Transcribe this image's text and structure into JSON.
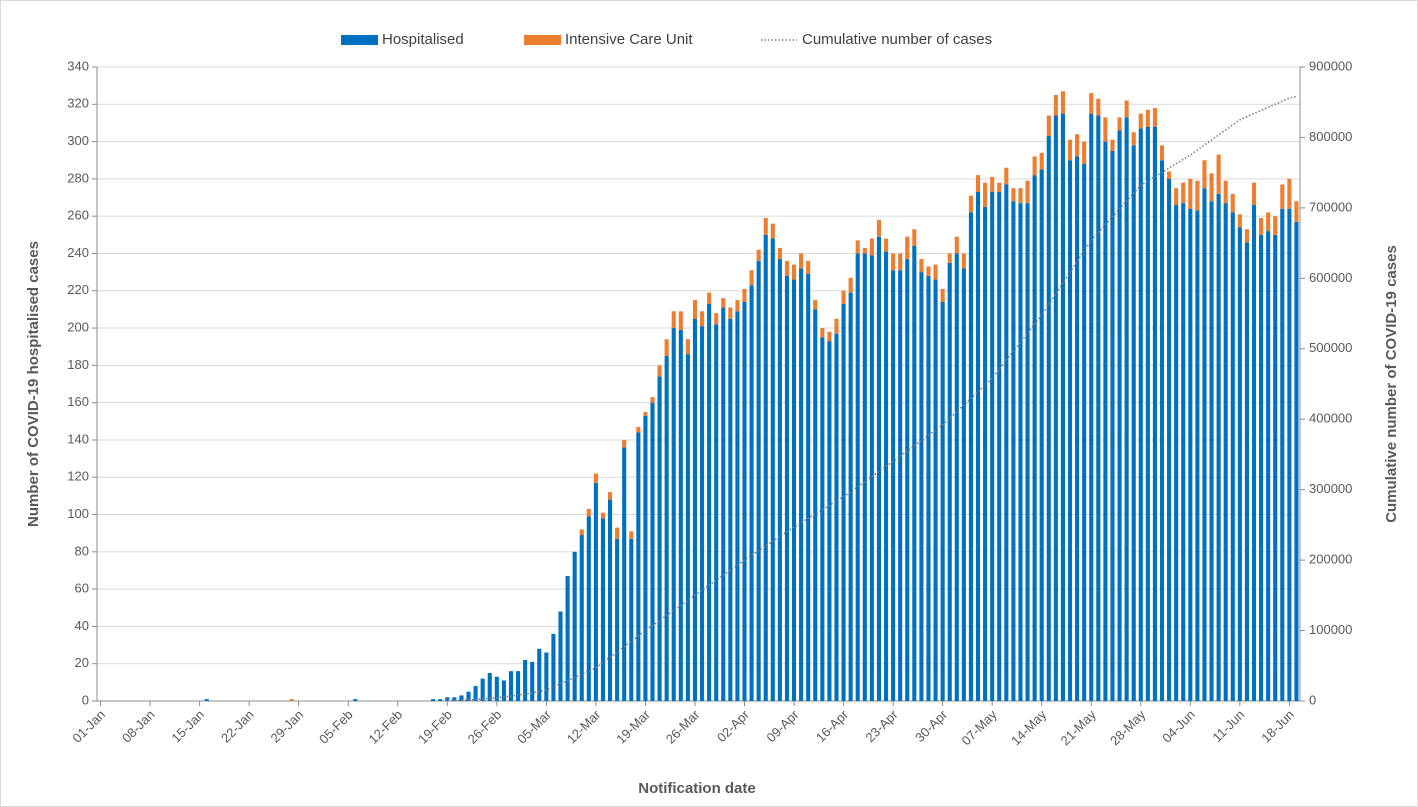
{
  "chart_data": {
    "type": "bar",
    "stacked": true,
    "grid": true,
    "x_label": "Notification date",
    "y_label": "Number of COVID-19 hospitalised cases",
    "y2_label": "Cumulative number of COVID-19 cases",
    "categories": [
      "01-Jan",
      null,
      null,
      null,
      null,
      null,
      null,
      "08-Jan",
      null,
      null,
      null,
      null,
      null,
      null,
      "15-Jan",
      null,
      null,
      null,
      null,
      null,
      null,
      "22-Jan",
      null,
      null,
      null,
      null,
      null,
      null,
      "29-Jan",
      null,
      null,
      null,
      null,
      null,
      null,
      "05-Feb",
      null,
      null,
      null,
      null,
      null,
      null,
      "12-Feb",
      null,
      null,
      null,
      null,
      null,
      null,
      "19-Feb",
      null,
      null,
      null,
      null,
      null,
      null,
      "26-Feb",
      null,
      null,
      null,
      null,
      null,
      null,
      "05-Mar",
      null,
      null,
      null,
      null,
      null,
      null,
      "12-Mar",
      null,
      null,
      null,
      null,
      null,
      null,
      "19-Mar",
      null,
      null,
      null,
      null,
      null,
      null,
      "26-Mar",
      null,
      null,
      null,
      null,
      null,
      null,
      "02-Apr",
      null,
      null,
      null,
      null,
      null,
      null,
      "09-Apr",
      null,
      null,
      null,
      null,
      null,
      null,
      "16-Apr",
      null,
      null,
      null,
      null,
      null,
      null,
      "23-Apr",
      null,
      null,
      null,
      null,
      null,
      null,
      "30-Apr",
      null,
      null,
      null,
      null,
      null,
      null,
      "07-May",
      null,
      null,
      null,
      null,
      null,
      null,
      "14-May",
      null,
      null,
      null,
      null,
      null,
      null,
      "21-May",
      null,
      null,
      null,
      null,
      null,
      null,
      "28-May",
      null,
      null,
      null,
      null,
      null,
      null,
      "04-Jun",
      null,
      null,
      null,
      null,
      null,
      null,
      "11-Jun",
      null,
      null,
      null,
      null,
      null,
      null,
      "18-Jun",
      null
    ],
    "series": [
      {
        "name": "Hospitalised",
        "color": "#0070c0",
        "values": [
          0,
          0,
          0,
          0,
          0,
          0,
          0,
          0,
          0,
          0,
          0,
          0,
          0,
          0,
          0,
          1,
          0,
          0,
          0,
          0,
          0,
          0,
          0,
          0,
          0,
          0,
          0,
          0,
          0,
          0,
          0,
          0,
          0,
          0,
          0,
          0,
          1,
          0,
          0,
          0,
          0,
          0,
          0,
          0,
          0,
          0,
          0,
          1,
          1,
          2,
          2,
          3,
          5,
          8,
          12,
          15,
          13,
          11,
          16,
          16,
          22,
          21,
          28,
          26,
          36,
          48,
          67,
          80,
          89,
          99,
          117,
          98,
          108,
          87,
          136,
          87,
          144,
          153,
          160,
          174,
          185,
          200,
          199,
          186,
          205,
          201,
          213,
          202,
          211,
          205,
          209,
          214,
          223,
          236,
          250,
          248,
          237,
          228,
          226,
          232,
          229,
          210,
          195,
          193,
          197,
          213,
          219,
          240,
          240,
          239,
          249,
          241,
          231,
          231,
          237,
          244,
          230,
          228,
          226,
          214,
          235,
          240,
          232,
          262,
          273,
          265,
          273,
          273,
          277,
          268,
          267,
          267,
          282,
          285,
          303,
          314,
          315,
          290,
          292,
          288,
          315,
          314,
          300,
          295,
          306,
          313,
          298,
          307,
          308,
          308,
          290,
          280,
          266,
          267,
          264,
          263,
          275,
          268,
          272,
          267,
          262,
          254,
          246,
          266,
          250,
          252,
          250,
          264,
          264,
          257
        ]
      },
      {
        "name": "Intensive Care Unit",
        "color": "#ed7d31",
        "values": [
          0,
          0,
          0,
          0,
          0,
          0,
          0,
          0,
          0,
          0,
          0,
          0,
          0,
          0,
          0,
          0,
          0,
          0,
          0,
          0,
          0,
          0,
          0,
          0,
          0,
          0,
          0,
          1,
          0,
          0,
          0,
          0,
          0,
          0,
          0,
          0,
          0,
          0,
          0,
          0,
          0,
          0,
          0,
          0,
          0,
          0,
          0,
          0,
          0,
          0,
          0,
          0,
          0,
          0,
          0,
          0,
          0,
          0,
          0,
          0,
          0,
          0,
          0,
          0,
          0,
          0,
          0,
          0,
          3,
          4,
          5,
          3,
          4,
          6,
          4,
          4,
          3,
          2,
          3,
          6,
          9,
          9,
          10,
          8,
          10,
          8,
          6,
          6,
          5,
          6,
          6,
          7,
          8,
          6,
          9,
          8,
          6,
          8,
          8,
          8,
          7,
          5,
          5,
          5,
          8,
          7,
          8,
          7,
          3,
          9,
          9,
          7,
          9,
          9,
          12,
          9,
          7,
          5,
          8,
          7,
          5,
          9,
          8,
          9,
          9,
          13,
          8,
          5,
          9,
          7,
          8,
          12,
          10,
          9,
          11,
          11,
          12,
          11,
          12,
          12,
          11,
          9,
          13,
          6,
          7,
          9,
          7,
          8,
          9,
          10,
          8,
          4,
          9,
          11,
          16,
          16,
          15,
          15,
          21,
          12,
          10,
          7,
          7,
          12,
          9,
          10,
          10,
          13,
          16,
          11
        ]
      },
      {
        "name": "Cumulative number of cases",
        "type": "line",
        "axis": "y2",
        "color": "#7f7f7f",
        "values": [
          null,
          null,
          null,
          null,
          null,
          null,
          null,
          null,
          null,
          null,
          null,
          null,
          null,
          null,
          null,
          null,
          null,
          null,
          null,
          null,
          null,
          null,
          null,
          null,
          null,
          null,
          null,
          null,
          null,
          null,
          null,
          null,
          null,
          null,
          null,
          null,
          null,
          null,
          null,
          null,
          null,
          null,
          null,
          null,
          null,
          null,
          null,
          null,
          null,
          500,
          700,
          1000,
          1500,
          2000,
          2800,
          3600,
          4500,
          5800,
          7000,
          8500,
          10000,
          11500,
          13500,
          15600,
          20100,
          24600,
          29100,
          33500,
          38000,
          42500,
          47000,
          54600,
          62100,
          69700,
          77300,
          84900,
          92400,
          100000,
          107100,
          114300,
          121400,
          128600,
          135700,
          142900,
          150000,
          157100,
          164300,
          171400,
          178600,
          185700,
          192900,
          200000,
          206700,
          213400,
          220100,
          226900,
          233600,
          240300,
          247000,
          253100,
          259300,
          265400,
          271600,
          277700,
          283900,
          290000,
          297100,
          304300,
          311400,
          318600,
          325700,
          332900,
          340000,
          347400,
          354900,
          362300,
          369700,
          377100,
          384600,
          392000,
          401400,
          410900,
          420300,
          429700,
          439100,
          448600,
          458000,
          470900,
          483700,
          496600,
          509400,
          522300,
          535100,
          548000,
          563100,
          578300,
          593400,
          608600,
          623700,
          638900,
          654000,
          665100,
          676300,
          687400,
          698600,
          709700,
          720900,
          732000,
          738100,
          744300,
          750400,
          756600,
          762700,
          768900,
          775000,
          782100,
          789300,
          796400,
          803600,
          810700,
          817900,
          825000,
          829400,
          833900,
          838300,
          842700,
          847100,
          851600,
          856000,
          858000
        ]
      }
    ],
    "ylim": [
      0,
      340
    ],
    "yticks": [
      0,
      20,
      40,
      60,
      80,
      100,
      120,
      140,
      160,
      180,
      200,
      220,
      240,
      260,
      280,
      300,
      320,
      340
    ],
    "y2lim": [
      0,
      900000
    ],
    "y2ticks": [
      0,
      100000,
      200000,
      300000,
      400000,
      500000,
      600000,
      700000,
      800000,
      900000
    ],
    "legend": "top"
  }
}
